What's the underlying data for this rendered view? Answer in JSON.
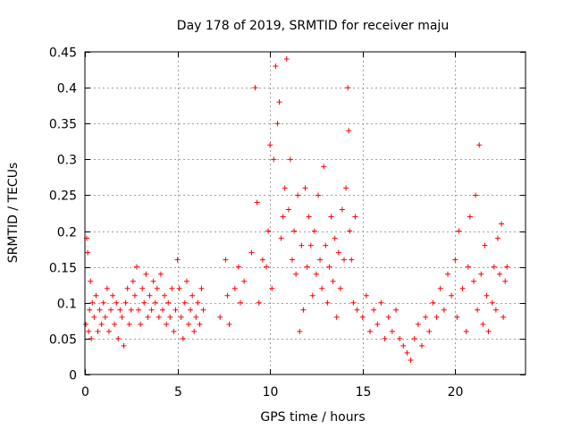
{
  "chart_data": {
    "type": "scatter",
    "title": "Day 178 of 2019, SRMTID for receiver maju",
    "xlabel": "GPS time / hours",
    "ylabel": "SRMTID / TECUs",
    "xlim": [
      0,
      23.8
    ],
    "ylim": [
      0,
      0.45
    ],
    "xticks": [
      0,
      5,
      10,
      15,
      20
    ],
    "xtick_labels": [
      "0",
      "5",
      "10",
      "15",
      "20"
    ],
    "yticks": [
      0,
      0.05,
      0.1,
      0.15,
      0.2,
      0.25,
      0.3,
      0.35,
      0.4,
      0.45
    ],
    "ytick_labels": [
      "0",
      "0.05",
      "0.1",
      "0.15",
      "0.2",
      "0.25",
      "0.3",
      "0.35",
      "0.4",
      "0.45"
    ],
    "grid": true,
    "marker": "+",
    "color": "#ff0000",
    "series": [
      {
        "name": "SRMTID",
        "points": [
          [
            0.05,
            0.07
          ],
          [
            0.1,
            0.19
          ],
          [
            0.15,
            0.17
          ],
          [
            0.2,
            0.06
          ],
          [
            0.25,
            0.09
          ],
          [
            0.3,
            0.13
          ],
          [
            0.35,
            0.05
          ],
          [
            0.4,
            0.1
          ],
          [
            0.5,
            0.08
          ],
          [
            0.6,
            0.11
          ],
          [
            0.7,
            0.06
          ],
          [
            0.8,
            0.09
          ],
          [
            0.9,
            0.07
          ],
          [
            1.0,
            0.1
          ],
          [
            1.1,
            0.08
          ],
          [
            1.2,
            0.12
          ],
          [
            1.3,
            0.06
          ],
          [
            1.4,
            0.09
          ],
          [
            1.5,
            0.11
          ],
          [
            1.6,
            0.07
          ],
          [
            1.7,
            0.1
          ],
          [
            1.8,
            0.05
          ],
          [
            1.9,
            0.09
          ],
          [
            2.0,
            0.08
          ],
          [
            2.1,
            0.04
          ],
          [
            2.2,
            0.1
          ],
          [
            2.3,
            0.12
          ],
          [
            2.4,
            0.07
          ],
          [
            2.5,
            0.09
          ],
          [
            2.6,
            0.13
          ],
          [
            2.7,
            0.11
          ],
          [
            2.8,
            0.15
          ],
          [
            2.9,
            0.09
          ],
          [
            3.0,
            0.07
          ],
          [
            3.1,
            0.12
          ],
          [
            3.2,
            0.1
          ],
          [
            3.3,
            0.14
          ],
          [
            3.4,
            0.08
          ],
          [
            3.5,
            0.11
          ],
          [
            3.6,
            0.09
          ],
          [
            3.7,
            0.13
          ],
          [
            3.8,
            0.1
          ],
          [
            3.9,
            0.12
          ],
          [
            4.0,
            0.08
          ],
          [
            4.1,
            0.14
          ],
          [
            4.2,
            0.09
          ],
          [
            4.3,
            0.11
          ],
          [
            4.4,
            0.07
          ],
          [
            4.5,
            0.1
          ],
          [
            4.6,
            0.08
          ],
          [
            4.7,
            0.12
          ],
          [
            4.8,
            0.06
          ],
          [
            4.9,
            0.09
          ],
          [
            5.0,
            0.16
          ],
          [
            5.1,
            0.12
          ],
          [
            5.2,
            0.08
          ],
          [
            5.3,
            0.05
          ],
          [
            5.4,
            0.1
          ],
          [
            5.5,
            0.13
          ],
          [
            5.6,
            0.07
          ],
          [
            5.7,
            0.09
          ],
          [
            5.8,
            0.11
          ],
          [
            5.9,
            0.06
          ],
          [
            6.0,
            0.08
          ],
          [
            6.1,
            0.1
          ],
          [
            6.2,
            0.07
          ],
          [
            6.3,
            0.12
          ],
          [
            6.4,
            0.09
          ],
          [
            7.3,
            0.08
          ],
          [
            7.6,
            0.16
          ],
          [
            7.7,
            0.11
          ],
          [
            7.8,
            0.07
          ],
          [
            8.1,
            0.12
          ],
          [
            8.3,
            0.15
          ],
          [
            8.4,
            0.1
          ],
          [
            8.6,
            0.13
          ],
          [
            9.0,
            0.17
          ],
          [
            9.2,
            0.4
          ],
          [
            9.3,
            0.24
          ],
          [
            9.4,
            0.1
          ],
          [
            9.6,
            0.16
          ],
          [
            9.8,
            0.15
          ],
          [
            9.9,
            0.2
          ],
          [
            10.0,
            0.32
          ],
          [
            10.1,
            0.12
          ],
          [
            10.2,
            0.3
          ],
          [
            10.3,
            0.43
          ],
          [
            10.4,
            0.35
          ],
          [
            10.5,
            0.38
          ],
          [
            10.6,
            0.19
          ],
          [
            10.7,
            0.22
          ],
          [
            10.8,
            0.26
          ],
          [
            10.9,
            0.44
          ],
          [
            11.0,
            0.23
          ],
          [
            11.1,
            0.3
          ],
          [
            11.2,
            0.16
          ],
          [
            11.3,
            0.2
          ],
          [
            11.4,
            0.14
          ],
          [
            11.5,
            0.25
          ],
          [
            11.6,
            0.06
          ],
          [
            11.7,
            0.18
          ],
          [
            11.8,
            0.09
          ],
          [
            11.9,
            0.26
          ],
          [
            12.0,
            0.15
          ],
          [
            12.1,
            0.22
          ],
          [
            12.2,
            0.18
          ],
          [
            12.3,
            0.11
          ],
          [
            12.4,
            0.2
          ],
          [
            12.5,
            0.14
          ],
          [
            12.6,
            0.25
          ],
          [
            12.7,
            0.16
          ],
          [
            12.8,
            0.12
          ],
          [
            12.9,
            0.29
          ],
          [
            13.0,
            0.18
          ],
          [
            13.1,
            0.1
          ],
          [
            13.2,
            0.15
          ],
          [
            13.3,
            0.22
          ],
          [
            13.4,
            0.13
          ],
          [
            13.5,
            0.19
          ],
          [
            13.6,
            0.08
          ],
          [
            13.7,
            0.17
          ],
          [
            13.8,
            0.12
          ],
          [
            13.9,
            0.23
          ],
          [
            14.0,
            0.16
          ],
          [
            14.1,
            0.26
          ],
          [
            14.2,
            0.4
          ],
          [
            14.25,
            0.34
          ],
          [
            14.3,
            0.2
          ],
          [
            14.4,
            0.16
          ],
          [
            14.5,
            0.1
          ],
          [
            14.6,
            0.22
          ],
          [
            14.7,
            0.09
          ],
          [
            15.0,
            0.08
          ],
          [
            15.2,
            0.11
          ],
          [
            15.4,
            0.06
          ],
          [
            15.6,
            0.09
          ],
          [
            15.8,
            0.07
          ],
          [
            16.0,
            0.1
          ],
          [
            16.2,
            0.05
          ],
          [
            16.4,
            0.08
          ],
          [
            16.6,
            0.06
          ],
          [
            16.8,
            0.09
          ],
          [
            17.0,
            0.05
          ],
          [
            17.2,
            0.04
          ],
          [
            17.4,
            0.03
          ],
          [
            17.6,
            0.02
          ],
          [
            17.8,
            0.05
          ],
          [
            18.0,
            0.07
          ],
          [
            18.2,
            0.04
          ],
          [
            18.4,
            0.08
          ],
          [
            18.6,
            0.06
          ],
          [
            18.8,
            0.1
          ],
          [
            19.0,
            0.08
          ],
          [
            19.2,
            0.12
          ],
          [
            19.4,
            0.09
          ],
          [
            19.6,
            0.14
          ],
          [
            19.8,
            0.11
          ],
          [
            20.0,
            0.16
          ],
          [
            20.1,
            0.08
          ],
          [
            20.2,
            0.2
          ],
          [
            20.4,
            0.12
          ],
          [
            20.6,
            0.06
          ],
          [
            20.7,
            0.15
          ],
          [
            20.8,
            0.22
          ],
          [
            21.0,
            0.13
          ],
          [
            21.1,
            0.25
          ],
          [
            21.2,
            0.09
          ],
          [
            21.3,
            0.32
          ],
          [
            21.4,
            0.14
          ],
          [
            21.5,
            0.07
          ],
          [
            21.6,
            0.18
          ],
          [
            21.7,
            0.11
          ],
          [
            21.8,
            0.06
          ],
          [
            22.0,
            0.1
          ],
          [
            22.1,
            0.15
          ],
          [
            22.2,
            0.09
          ],
          [
            22.3,
            0.19
          ],
          [
            22.4,
            0.14
          ],
          [
            22.5,
            0.21
          ],
          [
            22.6,
            0.08
          ],
          [
            22.7,
            0.13
          ],
          [
            22.8,
            0.15
          ]
        ]
      }
    ]
  }
}
